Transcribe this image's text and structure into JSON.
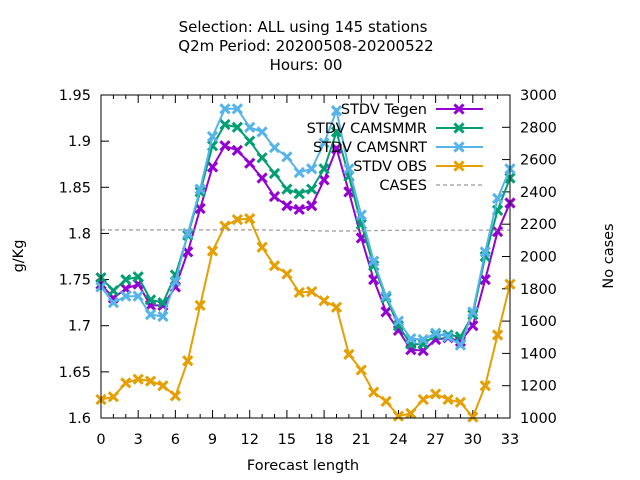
{
  "chart_data": {
    "type": "line",
    "title_lines": [
      "Selection: ALL using   145 stations",
      "Q2m   Period: 20200508-20200522",
      "Hours:  00"
    ],
    "xlabel": "Forecast length",
    "ylabel": "g/Kg",
    "y2label": "No cases",
    "xlim": [
      0,
      33
    ],
    "ylim": [
      1.6,
      1.95
    ],
    "y2lim": [
      1000,
      3000
    ],
    "xticks": [
      "0",
      "3",
      "6",
      "9",
      "12",
      "15",
      "18",
      "21",
      "24",
      "27",
      "30",
      "33"
    ],
    "yticks": [
      "1.6",
      "1.65",
      "1.7",
      "1.75",
      "1.8",
      "1.85",
      "1.9",
      "1.95"
    ],
    "y2ticks": [
      "1000",
      "1200",
      "1400",
      "1600",
      "1800",
      "2000",
      "2200",
      "2400",
      "2600",
      "2800",
      "3000"
    ],
    "legend_position": "top-right",
    "x": [
      0,
      1,
      2,
      3,
      4,
      5,
      6,
      7,
      8,
      9,
      10,
      11,
      12,
      13,
      14,
      15,
      16,
      17,
      18,
      19,
      20,
      21,
      22,
      23,
      24,
      25,
      26,
      27,
      28,
      29,
      30,
      31,
      32,
      33
    ],
    "series": [
      {
        "name": "STDV Tegen",
        "color": "#9400d3",
        "axis": "y1",
        "marker": "x",
        "values": [
          1.745,
          1.73,
          1.74,
          1.745,
          1.722,
          1.722,
          1.742,
          1.78,
          1.827,
          1.872,
          1.895,
          1.89,
          1.876,
          1.86,
          1.84,
          1.83,
          1.826,
          1.83,
          1.858,
          1.892,
          1.845,
          1.795,
          1.75,
          1.715,
          1.695,
          1.674,
          1.673,
          1.685,
          1.687,
          1.683,
          1.7,
          1.75,
          1.802,
          1.833
        ]
      },
      {
        "name": "STDV CAMSMMR",
        "color": "#009e73",
        "axis": "y1",
        "marker": "x",
        "values": [
          1.752,
          1.738,
          1.75,
          1.753,
          1.728,
          1.725,
          1.755,
          1.798,
          1.845,
          1.895,
          1.918,
          1.915,
          1.9,
          1.882,
          1.865,
          1.848,
          1.843,
          1.848,
          1.87,
          1.91,
          1.862,
          1.81,
          1.765,
          1.73,
          1.7,
          1.68,
          1.68,
          1.69,
          1.69,
          1.688,
          1.712,
          1.775,
          1.825,
          1.86
        ]
      },
      {
        "name": "STDV CAMSNRT",
        "color": "#56b4e9",
        "axis": "y1",
        "marker": "x",
        "values": [
          1.742,
          1.725,
          1.732,
          1.732,
          1.712,
          1.71,
          1.748,
          1.8,
          1.848,
          1.905,
          1.935,
          1.935,
          1.915,
          1.91,
          1.893,
          1.883,
          1.866,
          1.87,
          1.898,
          1.933,
          1.87,
          1.82,
          1.77,
          1.732,
          1.705,
          1.686,
          1.685,
          1.692,
          1.688,
          1.679,
          1.715,
          1.78,
          1.838,
          1.87
        ]
      },
      {
        "name": "STDV OBS",
        "color": "#e69f00",
        "axis": "y1",
        "marker": "x",
        "values": [
          1.62,
          1.623,
          1.638,
          1.642,
          1.64,
          1.635,
          1.624,
          1.662,
          1.722,
          1.781,
          1.808,
          1.815,
          1.816,
          1.785,
          1.765,
          1.756,
          1.736,
          1.737,
          1.727,
          1.72,
          1.669,
          1.652,
          1.628,
          1.618,
          1.602,
          1.605,
          1.62,
          1.626,
          1.62,
          1.617,
          1.601,
          1.635,
          1.69,
          1.745
        ]
      },
      {
        "name": "CASES",
        "color": "#999999",
        "axis": "y2",
        "marker": "none",
        "dashed": true,
        "values": [
          2165,
          2165,
          2165,
          2165,
          2165,
          2165,
          2165,
          2165,
          2165,
          2165,
          2165,
          2165,
          2165,
          2165,
          2163,
          2163,
          2163,
          2160,
          2158,
          2158,
          2158,
          2160,
          2160,
          2162,
          2162,
          2163,
          2163,
          2163,
          2163,
          2163,
          2163,
          2163,
          2163,
          2163
        ]
      }
    ]
  }
}
